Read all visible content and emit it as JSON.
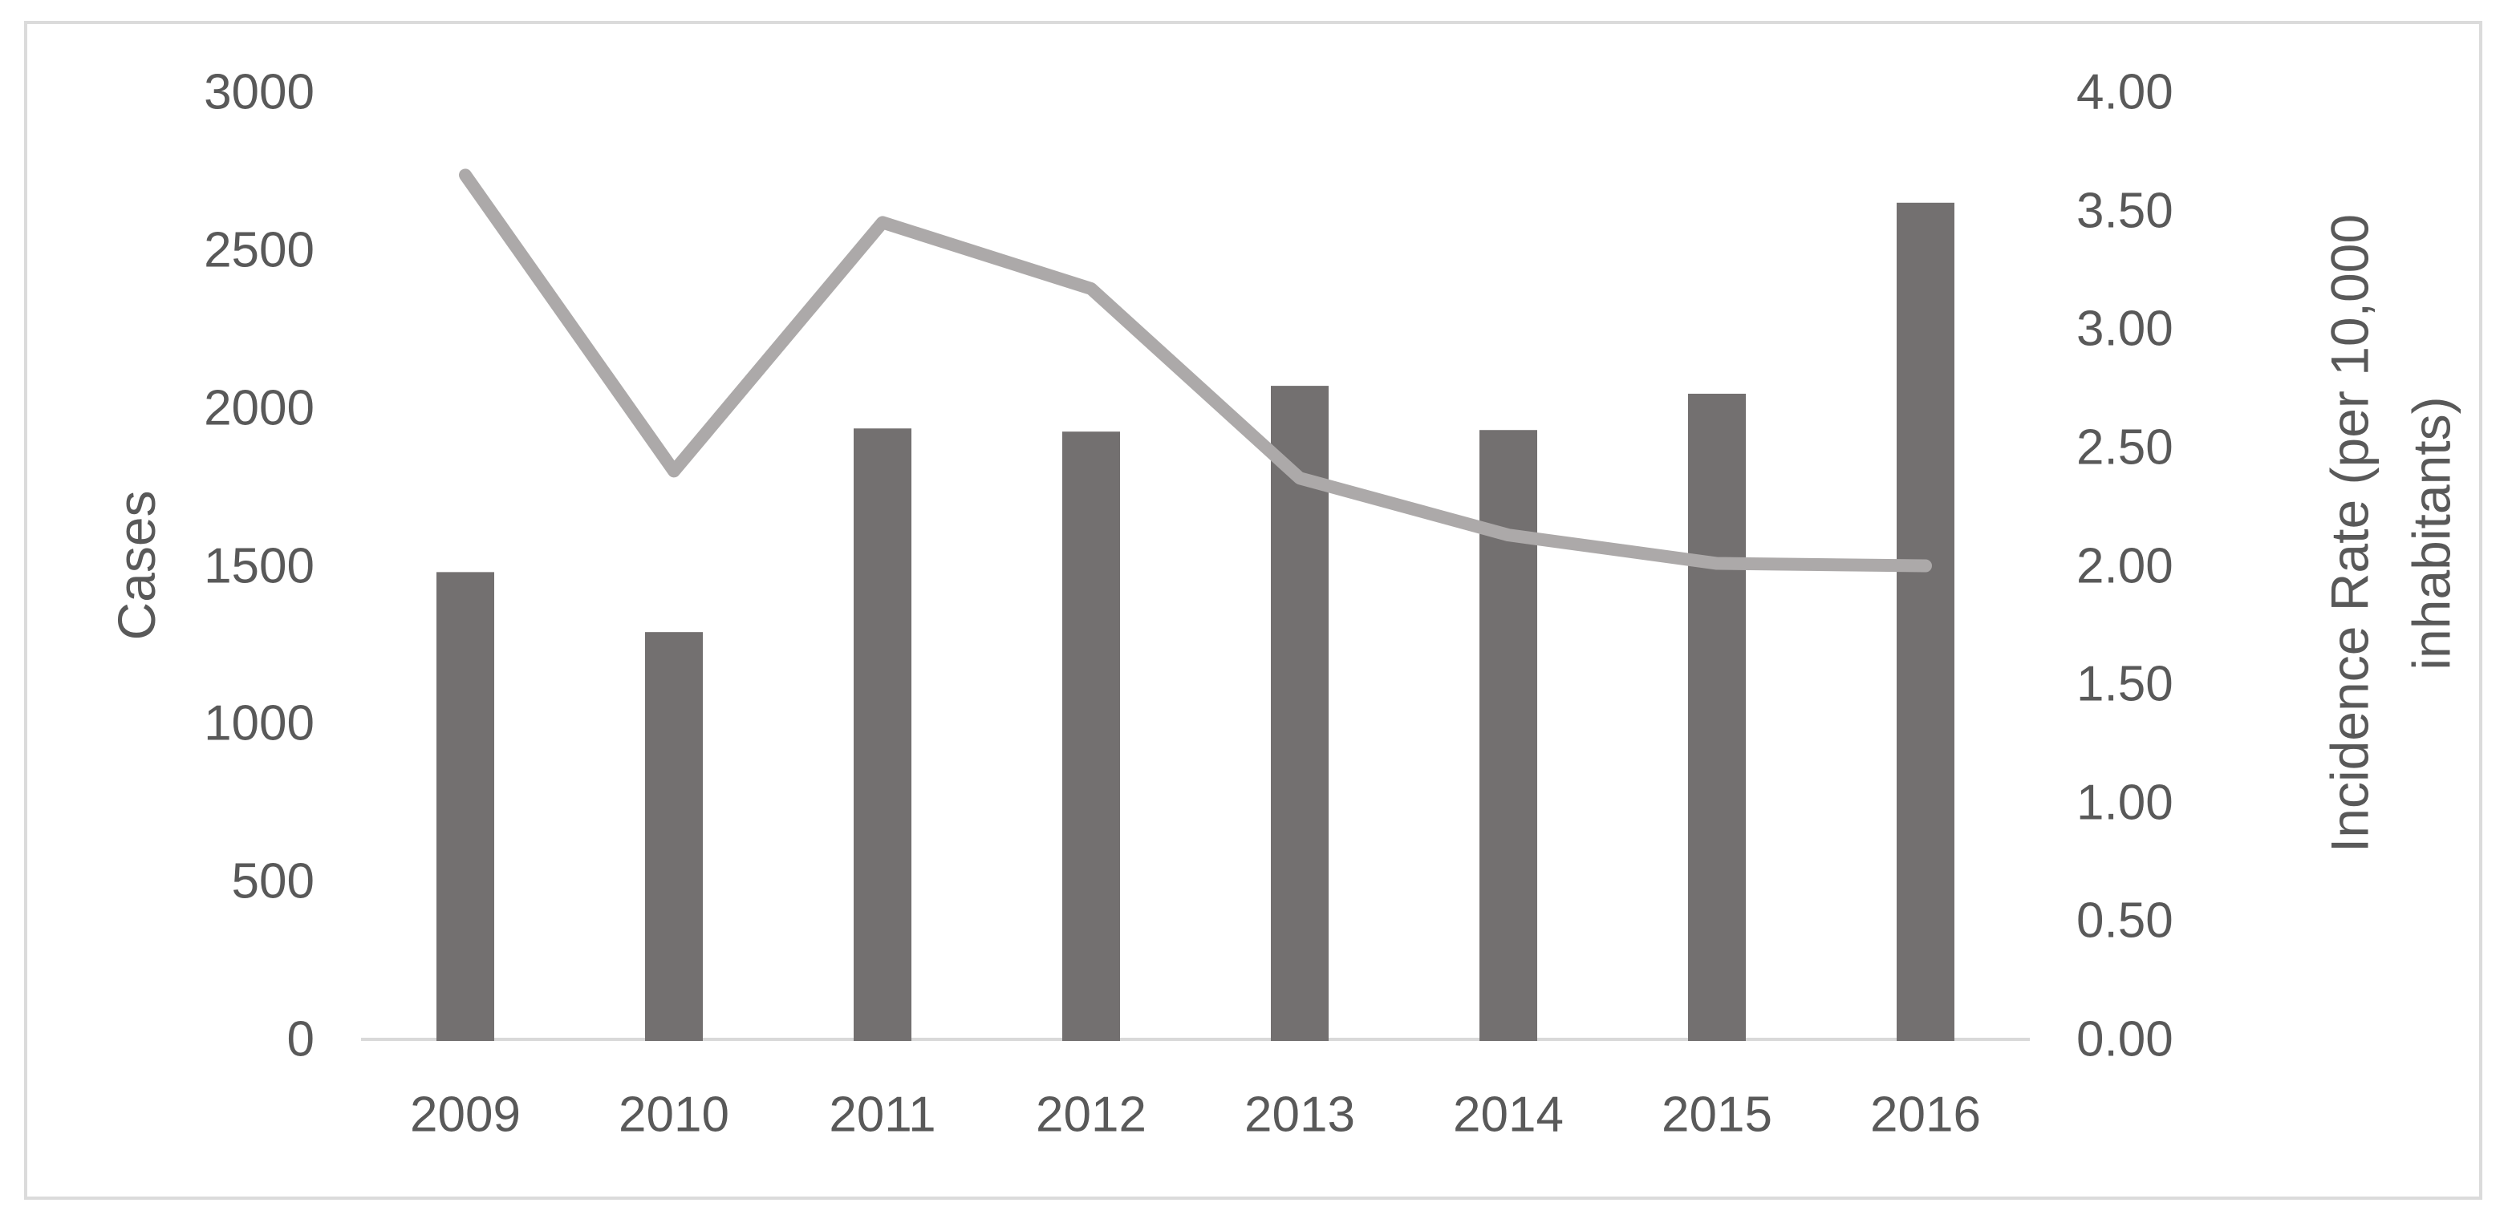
{
  "chart_data": {
    "type": "bar",
    "subtype": "combo-bar-line",
    "title": "",
    "categories": [
      "2009",
      "2010",
      "2011",
      "2012",
      "2013",
      "2014",
      "2015",
      "2016"
    ],
    "series": [
      {
        "name": "Cases",
        "chart": "bar",
        "axis": "left",
        "values": [
          1480,
          1290,
          1935,
          1925,
          2070,
          1930,
          2045,
          2650
        ],
        "color": "#737070"
      },
      {
        "name": "Incidence Rate",
        "chart": "line",
        "axis": "right",
        "values": [
          3.65,
          2.4,
          3.45,
          3.17,
          2.37,
          2.13,
          2.01,
          2.0
        ],
        "color": "#ACA9A9"
      }
    ],
    "left_axis": {
      "title": "Cases",
      "min": 0,
      "max": 3000,
      "tick_step": 500,
      "tick_labels": [
        "0",
        "500",
        "1000",
        "1500",
        "2000",
        "2500",
        "3000"
      ]
    },
    "right_axis": {
      "title_line1": "Incidence Rate (per 10,000",
      "title_line2": "inhabitants)",
      "min": 0,
      "max": 4,
      "tick_step": 0.5,
      "tick_labels": [
        "0.00",
        "0.50",
        "1.00",
        "1.50",
        "2.00",
        "2.50",
        "3.00",
        "3.50",
        "4.00"
      ]
    },
    "x_axis": {
      "tick_labels": [
        "2009",
        "2010",
        "2011",
        "2012",
        "2013",
        "2014",
        "2015",
        "2016"
      ]
    },
    "legend": "none",
    "gridlines": false,
    "colors": {
      "bar": "#737070",
      "line": "#ACA9A9",
      "axis_line": "#D9D9D9",
      "text": "#595959",
      "border": "#DBDBDB",
      "background": "#FFFFFF"
    }
  }
}
